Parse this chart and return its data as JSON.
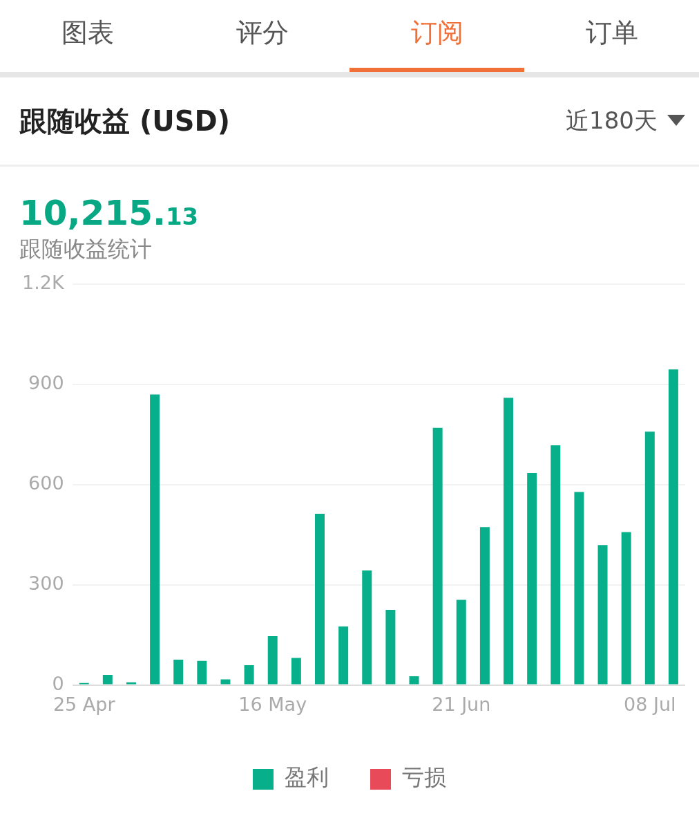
{
  "chart_data": {
    "type": "bar",
    "title": "跟随收益 (USD)",
    "subtitle": "跟随收益统计",
    "annotations": [
      "图表",
      "评分",
      "订阅",
      "订单",
      "近180天",
      "10,215.13"
    ],
    "categories": [
      "25 Apr",
      null,
      null,
      null,
      null,
      null,
      null,
      null,
      "16 May",
      null,
      null,
      null,
      null,
      null,
      null,
      null,
      "21 Jun",
      null,
      null,
      null,
      null,
      null,
      null,
      null,
      "08 Jul",
      null
    ],
    "series": [
      {
        "name": "盈利",
        "color": "#07b08a",
        "values": [
          6,
          30,
          8,
          870,
          76,
          72,
          17,
          59,
          146,
          81,
          513,
          175,
          343,
          225,
          26,
          770,
          255,
          473,
          860,
          635,
          718,
          578,
          419,
          458,
          759,
          945
        ]
      },
      {
        "name": "亏损",
        "color": "#e84a5a",
        "values": [
          null,
          null,
          null,
          null,
          null,
          null,
          null,
          null,
          null,
          null,
          null,
          null,
          null,
          null,
          null,
          null,
          null,
          null,
          null,
          null,
          null,
          null,
          null,
          null,
          null,
          null
        ]
      }
    ],
    "ylim": [
      0,
      1200
    ],
    "yticks": [
      0,
      300,
      600,
      900,
      {
        "value": 1200,
        "label": "1.2K"
      }
    ],
    "grid": "y",
    "legend": "bottom"
  }
}
